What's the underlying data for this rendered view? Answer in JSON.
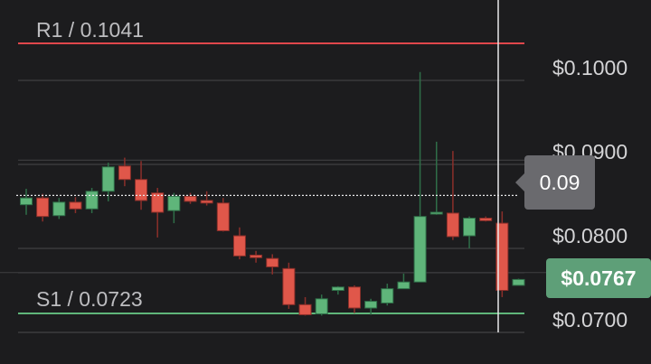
{
  "resistance": {
    "label": "R1 / 0.1041",
    "value": 0.1041,
    "color": "#e0474c"
  },
  "support": {
    "label": "S1 / 0.0723",
    "value": 0.0723,
    "color": "#5fb57a"
  },
  "crosshair": {
    "value_label": "0.09",
    "value": 0.0863
  },
  "current_price": {
    "label": "$0.0767",
    "value": 0.0767
  },
  "colors": {
    "up": "#5fb57a",
    "down": "#e0574a",
    "background": "#1c1c1e",
    "grid": "#3a3a3c"
  },
  "chart_data": {
    "type": "candlestick",
    "y_ticks": [
      {
        "value": 0.1,
        "label": "$0.1000"
      },
      {
        "value": 0.09,
        "label": "$0.0900"
      },
      {
        "value": 0.08,
        "label": "$0.0800"
      },
      {
        "value": 0.07,
        "label": "$0.0700"
      }
    ],
    "candles": [
      {
        "o": 0.0852,
        "h": 0.0871,
        "l": 0.084,
        "c": 0.086
      },
      {
        "o": 0.086,
        "h": 0.0865,
        "l": 0.0832,
        "c": 0.0838
      },
      {
        "o": 0.0839,
        "h": 0.086,
        "l": 0.0835,
        "c": 0.0855
      },
      {
        "o": 0.0855,
        "h": 0.0861,
        "l": 0.0842,
        "c": 0.0847
      },
      {
        "o": 0.0847,
        "h": 0.0872,
        "l": 0.0842,
        "c": 0.0868
      },
      {
        "o": 0.0868,
        "h": 0.0902,
        "l": 0.0856,
        "c": 0.0897
      },
      {
        "o": 0.0898,
        "h": 0.0908,
        "l": 0.0874,
        "c": 0.0882
      },
      {
        "o": 0.0882,
        "h": 0.0904,
        "l": 0.0846,
        "c": 0.0857
      },
      {
        "o": 0.0866,
        "h": 0.0872,
        "l": 0.0813,
        "c": 0.0843
      },
      {
        "o": 0.0845,
        "h": 0.0866,
        "l": 0.083,
        "c": 0.0862
      },
      {
        "o": 0.0862,
        "h": 0.0866,
        "l": 0.0853,
        "c": 0.0856
      },
      {
        "o": 0.0857,
        "h": 0.0868,
        "l": 0.0851,
        "c": 0.0854
      },
      {
        "o": 0.0854,
        "h": 0.086,
        "l": 0.082,
        "c": 0.0821
      },
      {
        "o": 0.0815,
        "h": 0.0825,
        "l": 0.0787,
        "c": 0.0791
      },
      {
        "o": 0.0792,
        "h": 0.0797,
        "l": 0.0783,
        "c": 0.0789
      },
      {
        "o": 0.0788,
        "h": 0.0793,
        "l": 0.0769,
        "c": 0.0778
      },
      {
        "o": 0.0776,
        "h": 0.0783,
        "l": 0.0728,
        "c": 0.0733
      },
      {
        "o": 0.0733,
        "h": 0.0742,
        "l": 0.072,
        "c": 0.0721
      },
      {
        "o": 0.0722,
        "h": 0.0745,
        "l": 0.072,
        "c": 0.074
      },
      {
        "o": 0.075,
        "h": 0.0755,
        "l": 0.0745,
        "c": 0.0754
      },
      {
        "o": 0.0754,
        "h": 0.0756,
        "l": 0.0723,
        "c": 0.0729
      },
      {
        "o": 0.0729,
        "h": 0.074,
        "l": 0.0721,
        "c": 0.0737
      },
      {
        "o": 0.0735,
        "h": 0.0758,
        "l": 0.0732,
        "c": 0.0752
      },
      {
        "o": 0.0752,
        "h": 0.077,
        "l": 0.0752,
        "c": 0.076
      },
      {
        "o": 0.076,
        "h": 0.101,
        "l": 0.076,
        "c": 0.0838
      },
      {
        "o": 0.0841,
        "h": 0.0927,
        "l": 0.084,
        "c": 0.0843
      },
      {
        "o": 0.0842,
        "h": 0.0916,
        "l": 0.081,
        "c": 0.0814
      },
      {
        "o": 0.0815,
        "h": 0.0838,
        "l": 0.08,
        "c": 0.0836
      },
      {
        "o": 0.0836,
        "h": 0.0838,
        "l": 0.0832,
        "c": 0.0833
      },
      {
        "o": 0.083,
        "h": 0.0844,
        "l": 0.0742,
        "c": 0.075
      },
      {
        "o": 0.0756,
        "h": 0.0764,
        "l": 0.0756,
        "c": 0.0763
      }
    ]
  }
}
